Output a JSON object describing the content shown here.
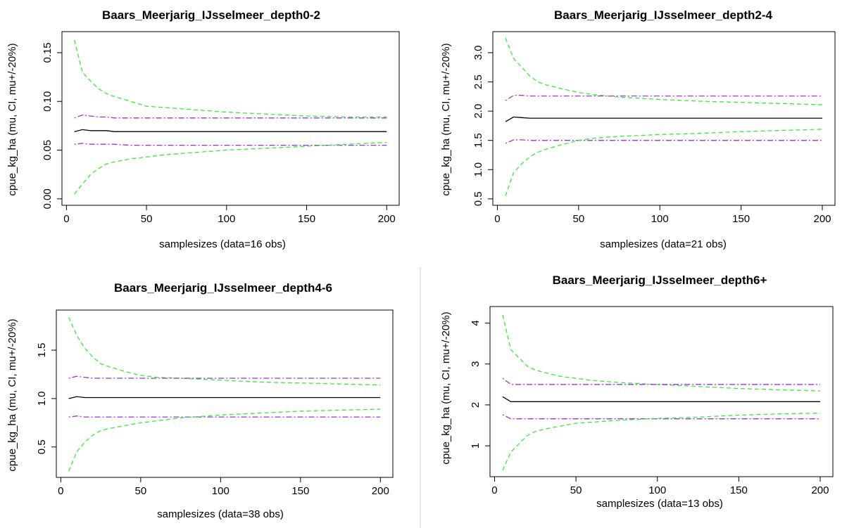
{
  "chart_data": [
    {
      "type": "line",
      "title": "Baars_Meerjarig_IJsselmeer_depth0-2",
      "xlabel": "samplesizes (data=16 obs)",
      "ylabel": "cpue_kg_ha (mu, CI, mu+/-20%)",
      "xlim": [
        0,
        200
      ],
      "ylim": [
        0,
        0.165
      ],
      "xticks": [
        0,
        50,
        100,
        150,
        200
      ],
      "yticks": [
        0.0,
        0.05,
        0.1,
        0.15
      ],
      "ytick_labels": [
        "0.00",
        "0.05",
        "0.10",
        "0.15"
      ],
      "x": [
        5,
        10,
        15,
        20,
        25,
        30,
        40,
        50,
        60,
        75,
        100,
        125,
        150,
        175,
        200
      ],
      "series": [
        {
          "role": "ci-upper",
          "color": "#33ee33",
          "style": "dashed",
          "values": [
            0.163,
            0.13,
            0.121,
            0.113,
            0.108,
            0.105,
            0.1,
            0.095,
            0.094,
            0.092,
            0.089,
            0.087,
            0.085,
            0.084,
            0.084
          ]
        },
        {
          "role": "mu-plus-20",
          "color": "#9933ee",
          "style": "dotdash",
          "values": [
            0.083,
            0.086,
            0.085,
            0.084,
            0.084,
            0.083,
            0.083,
            0.083,
            0.083,
            0.083,
            0.083,
            0.083,
            0.083,
            0.083,
            0.083
          ]
        },
        {
          "role": "mu",
          "color": "#000000",
          "style": "solid",
          "values": [
            0.069,
            0.071,
            0.07,
            0.07,
            0.07,
            0.069,
            0.069,
            0.069,
            0.069,
            0.069,
            0.069,
            0.069,
            0.069,
            0.069,
            0.069
          ]
        },
        {
          "role": "mu-minus-20",
          "color": "#9933ee",
          "style": "dotdash",
          "values": [
            0.056,
            0.057,
            0.056,
            0.056,
            0.056,
            0.056,
            0.055,
            0.055,
            0.055,
            0.055,
            0.055,
            0.055,
            0.055,
            0.055,
            0.055
          ]
        },
        {
          "role": "ci-lower",
          "color": "#33ee33",
          "style": "dashed",
          "values": [
            0.005,
            0.015,
            0.025,
            0.031,
            0.036,
            0.038,
            0.041,
            0.043,
            0.045,
            0.047,
            0.05,
            0.052,
            0.054,
            0.056,
            0.058
          ]
        }
      ]
    },
    {
      "type": "line",
      "title": "Baars_Meerjarig_IJsselmeer_depth2-4",
      "xlabel": "samplesizes (data=21 obs)",
      "ylabel": "cpue_kg_ha (mu, CI, mu+/-20%)",
      "xlim": [
        0,
        200
      ],
      "ylim": [
        0.5,
        3.25
      ],
      "xticks": [
        0,
        50,
        100,
        150,
        200
      ],
      "yticks": [
        0.5,
        1.0,
        1.5,
        2.0,
        2.5,
        3.0
      ],
      "ytick_labels": [
        "0.5",
        "1.0",
        "1.5",
        "2.0",
        "2.5",
        "3.0"
      ],
      "x": [
        5,
        10,
        15,
        20,
        25,
        30,
        40,
        50,
        60,
        75,
        100,
        125,
        150,
        175,
        200
      ],
      "series": [
        {
          "role": "ci-upper",
          "color": "#33ee33",
          "style": "dashed",
          "values": [
            3.25,
            2.9,
            2.75,
            2.6,
            2.5,
            2.45,
            2.38,
            2.32,
            2.28,
            2.24,
            2.2,
            2.17,
            2.15,
            2.13,
            2.11
          ]
        },
        {
          "role": "mu-plus-20",
          "color": "#9933ee",
          "style": "dotdash",
          "values": [
            2.18,
            2.27,
            2.27,
            2.26,
            2.26,
            2.26,
            2.26,
            2.26,
            2.26,
            2.26,
            2.26,
            2.26,
            2.26,
            2.26,
            2.26
          ]
        },
        {
          "role": "mu",
          "color": "#000000",
          "style": "solid",
          "values": [
            1.82,
            1.9,
            1.89,
            1.88,
            1.88,
            1.88,
            1.88,
            1.88,
            1.88,
            1.88,
            1.88,
            1.88,
            1.88,
            1.88,
            1.88
          ]
        },
        {
          "role": "mu-minus-20",
          "color": "#9933ee",
          "style": "dotdash",
          "values": [
            1.45,
            1.51,
            1.51,
            1.5,
            1.5,
            1.5,
            1.5,
            1.5,
            1.5,
            1.5,
            1.5,
            1.5,
            1.5,
            1.5,
            1.5
          ]
        },
        {
          "role": "ci-lower",
          "color": "#33ee33",
          "style": "dashed",
          "values": [
            0.55,
            0.95,
            1.1,
            1.22,
            1.3,
            1.35,
            1.43,
            1.5,
            1.54,
            1.57,
            1.6,
            1.62,
            1.65,
            1.67,
            1.69
          ]
        }
      ]
    },
    {
      "type": "line",
      "title": "Baars_Meerjarig_IJsselmeer_depth4-6",
      "xlabel": "samplesizes (data=38 obs)",
      "ylabel": "cpue_kg_ha (mu, CI, mu+/-20%)",
      "xlim": [
        0,
        200
      ],
      "ylim": [
        0.25,
        1.85
      ],
      "xticks": [
        0,
        50,
        100,
        150,
        200
      ],
      "yticks": [
        0.5,
        1.0,
        1.5
      ],
      "ytick_labels": [
        "0.5",
        "1.0",
        "1.5"
      ],
      "x": [
        5,
        10,
        15,
        20,
        25,
        30,
        40,
        50,
        60,
        75,
        100,
        125,
        150,
        175,
        200
      ],
      "series": [
        {
          "role": "ci-upper",
          "color": "#33ee33",
          "style": "dashed",
          "values": [
            1.84,
            1.65,
            1.52,
            1.43,
            1.36,
            1.33,
            1.28,
            1.24,
            1.22,
            1.21,
            1.19,
            1.17,
            1.16,
            1.15,
            1.14
          ]
        },
        {
          "role": "mu-plus-20",
          "color": "#9933ee",
          "style": "dotdash",
          "values": [
            1.21,
            1.23,
            1.22,
            1.21,
            1.21,
            1.21,
            1.21,
            1.21,
            1.21,
            1.21,
            1.21,
            1.21,
            1.21,
            1.21,
            1.21
          ]
        },
        {
          "role": "mu",
          "color": "#000000",
          "style": "solid",
          "values": [
            1.0,
            1.02,
            1.01,
            1.01,
            1.01,
            1.01,
            1.01,
            1.01,
            1.01,
            1.01,
            1.01,
            1.01,
            1.01,
            1.01,
            1.01
          ]
        },
        {
          "role": "mu-minus-20",
          "color": "#9933ee",
          "style": "dotdash",
          "values": [
            0.81,
            0.82,
            0.81,
            0.81,
            0.81,
            0.81,
            0.81,
            0.81,
            0.81,
            0.81,
            0.81,
            0.81,
            0.81,
            0.81,
            0.81
          ]
        },
        {
          "role": "ci-lower",
          "color": "#33ee33",
          "style": "dashed",
          "values": [
            0.25,
            0.45,
            0.55,
            0.62,
            0.67,
            0.69,
            0.72,
            0.75,
            0.77,
            0.8,
            0.83,
            0.85,
            0.87,
            0.88,
            0.89
          ]
        }
      ]
    },
    {
      "type": "line",
      "title": "Baars_Meerjarig_IJsselmeer_depth6+",
      "xlabel": "samplesizes (data=13 obs)",
      "ylabel": "cpue_kg_ha (mu, CI, mu+/-20%)",
      "xlim": [
        0,
        200
      ],
      "ylim": [
        0.4,
        4.25
      ],
      "xticks": [
        0,
        50,
        100,
        150,
        200
      ],
      "yticks": [
        1,
        2,
        3,
        4
      ],
      "ytick_labels": [
        "1",
        "2",
        "3",
        "4"
      ],
      "x": [
        5,
        10,
        15,
        20,
        25,
        30,
        40,
        50,
        60,
        75,
        100,
        125,
        150,
        175,
        200
      ],
      "series": [
        {
          "role": "ci-upper",
          "color": "#33ee33",
          "style": "dashed",
          "values": [
            4.2,
            3.35,
            3.15,
            2.95,
            2.85,
            2.8,
            2.7,
            2.65,
            2.6,
            2.55,
            2.5,
            2.45,
            2.4,
            2.37,
            2.34
          ]
        },
        {
          "role": "mu-plus-20",
          "color": "#9933ee",
          "style": "dotdash",
          "values": [
            2.65,
            2.5,
            2.5,
            2.5,
            2.5,
            2.5,
            2.5,
            2.5,
            2.5,
            2.5,
            2.5,
            2.5,
            2.5,
            2.5,
            2.5
          ]
        },
        {
          "role": "mu",
          "color": "#000000",
          "style": "solid",
          "values": [
            2.2,
            2.08,
            2.08,
            2.08,
            2.08,
            2.08,
            2.08,
            2.08,
            2.08,
            2.08,
            2.08,
            2.08,
            2.08,
            2.08,
            2.08
          ]
        },
        {
          "role": "mu-minus-20",
          "color": "#9933ee",
          "style": "dotdash",
          "values": [
            1.76,
            1.66,
            1.66,
            1.66,
            1.66,
            1.66,
            1.66,
            1.66,
            1.66,
            1.66,
            1.66,
            1.66,
            1.66,
            1.66,
            1.66
          ]
        },
        {
          "role": "ci-lower",
          "color": "#33ee33",
          "style": "dashed",
          "values": [
            0.4,
            0.85,
            1.05,
            1.25,
            1.35,
            1.4,
            1.48,
            1.55,
            1.58,
            1.62,
            1.67,
            1.7,
            1.75,
            1.78,
            1.8
          ]
        }
      ]
    }
  ]
}
